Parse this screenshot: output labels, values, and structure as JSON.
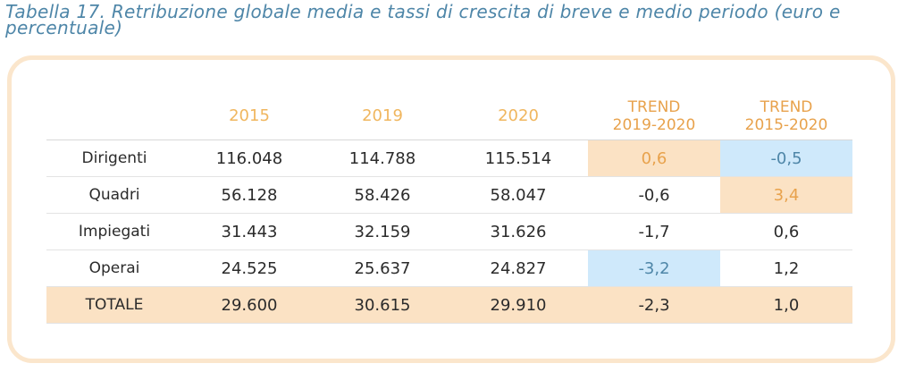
{
  "caption": "Tabella 17. Retribuzione globale media e tassi di crescita di breve e medio periodo (euro e percentuale)",
  "table": {
    "headers": [
      "",
      "2015",
      "2019",
      "2020",
      "TREND\n2019-2020",
      "TREND\n2015-2020"
    ],
    "header_lines": {
      "trend1_a": "TREND",
      "trend1_b": "2019-2020",
      "trend2_a": "TREND",
      "trend2_b": "2015-2020"
    },
    "rows": [
      {
        "label": "Dirigenti",
        "v2015": "116.048",
        "v2019": "114.788",
        "v2020": "115.514",
        "t1920": "0,6",
        "t1520": "-0,5"
      },
      {
        "label": "Quadri",
        "v2015": "56.128",
        "v2019": "58.426",
        "v2020": "58.047",
        "t1920": "-0,6",
        "t1520": "3,4"
      },
      {
        "label": "Impiegati",
        "v2015": "31.443",
        "v2019": "32.159",
        "v2020": "31.626",
        "t1920": "-1,7",
        "t1520": "0,6"
      },
      {
        "label": "Operai",
        "v2015": "24.525",
        "v2019": "25.637",
        "v2020": "24.827",
        "t1920": "-3,2",
        "t1520": "1,2"
      },
      {
        "label": "TOTALE",
        "v2015": "29.600",
        "v2019": "30.615",
        "v2020": "29.910",
        "t1920": "-2,3",
        "t1520": "1,0"
      }
    ]
  },
  "colors": {
    "caption": "#4e86a8",
    "header": "#f0b65e",
    "highlight_orange": "#fbe2c4",
    "highlight_blue": "#cfe9fb",
    "frame": "#fbe6cc"
  }
}
